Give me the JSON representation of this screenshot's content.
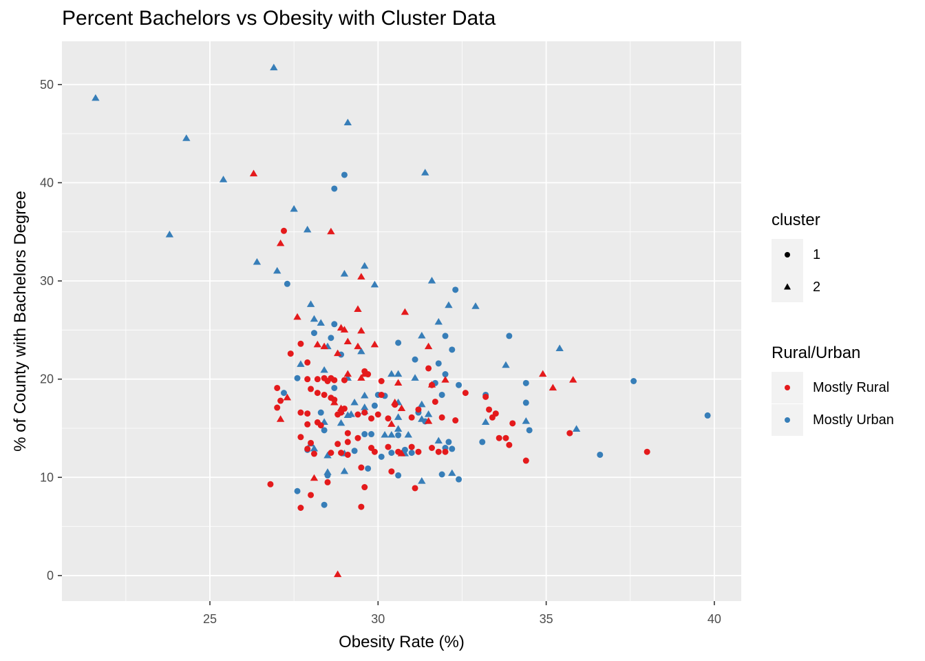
{
  "chart_data": {
    "type": "scatter",
    "title": "Percent Bachelors vs Obesity with Cluster Data",
    "xlabel": "Obesity Rate (%)",
    "ylabel": "% of County with Bachelors Degree",
    "xlim": [
      20.6,
      40.8
    ],
    "ylim": [
      -2.6,
      54.4
    ],
    "x_ticks": [
      25,
      30,
      35,
      40
    ],
    "y_ticks": [
      0,
      10,
      20,
      30,
      40,
      50
    ],
    "x_tick_labels": [
      "25",
      "30",
      "35",
      "40"
    ],
    "y_tick_labels": [
      "0",
      "10",
      "20",
      "30",
      "40",
      "50"
    ],
    "grid": true,
    "panel_background": "#ebebeb",
    "legend_position": "right",
    "legends": [
      {
        "title": "cluster",
        "entries": [
          {
            "label": "1",
            "shape": "circle"
          },
          {
            "label": "2",
            "shape": "triangle"
          }
        ]
      },
      {
        "title": "Rural/Urban",
        "entries": [
          {
            "label": "Mostly Rural",
            "color": "#e41a1c"
          },
          {
            "label": "Mostly Urban",
            "color": "#377eb8"
          }
        ]
      }
    ],
    "colors": {
      "Mostly Rural": "#e41a1c",
      "Mostly Urban": "#377eb8"
    },
    "series": [
      {
        "name": "Mostly Urban",
        "cluster": "2",
        "points": [
          [
            21.6,
            48.6
          ],
          [
            26.9,
            51.7
          ],
          [
            24.3,
            44.5
          ],
          [
            25.4,
            40.3
          ],
          [
            29.1,
            46.1
          ],
          [
            23.8,
            34.7
          ],
          [
            31.4,
            41.0
          ],
          [
            27.5,
            37.3
          ],
          [
            27.9,
            35.2
          ],
          [
            26.4,
            31.9
          ],
          [
            27.0,
            31.0
          ],
          [
            29.6,
            31.5
          ],
          [
            29.0,
            30.7
          ],
          [
            31.6,
            30.0
          ],
          [
            29.9,
            29.6
          ],
          [
            32.1,
            27.5
          ],
          [
            32.9,
            27.4
          ],
          [
            28.0,
            27.6
          ],
          [
            28.1,
            26.1
          ],
          [
            28.3,
            25.7
          ],
          [
            31.8,
            25.8
          ],
          [
            31.3,
            24.4
          ],
          [
            28.5,
            23.3
          ],
          [
            29.5,
            22.8
          ],
          [
            27.7,
            21.5
          ],
          [
            28.4,
            20.9
          ],
          [
            33.8,
            21.4
          ],
          [
            35.4,
            23.1
          ],
          [
            29.1,
            20.1
          ],
          [
            30.4,
            20.5
          ],
          [
            30.6,
            20.5
          ],
          [
            31.1,
            20.1
          ],
          [
            29.6,
            18.3
          ],
          [
            29.3,
            17.6
          ],
          [
            29.6,
            17.1
          ],
          [
            30.6,
            17.6
          ],
          [
            31.3,
            17.4
          ],
          [
            31.5,
            16.4
          ],
          [
            29.6,
            16.7
          ],
          [
            29.2,
            16.4
          ],
          [
            28.9,
            16.7
          ],
          [
            29.1,
            16.3
          ],
          [
            30.6,
            16.1
          ],
          [
            31.3,
            15.9
          ],
          [
            28.4,
            15.6
          ],
          [
            28.9,
            15.5
          ],
          [
            30.6,
            14.9
          ],
          [
            30.2,
            14.3
          ],
          [
            30.4,
            14.3
          ],
          [
            30.9,
            14.3
          ],
          [
            31.8,
            13.7
          ],
          [
            33.2,
            15.6
          ],
          [
            34.4,
            15.7
          ],
          [
            35.9,
            14.9
          ],
          [
            28.0,
            13.4
          ],
          [
            28.1,
            12.9
          ],
          [
            29.0,
            12.4
          ],
          [
            30.8,
            12.4
          ],
          [
            28.5,
            10.5
          ],
          [
            29.0,
            10.6
          ],
          [
            31.3,
            9.6
          ],
          [
            32.2,
            10.4
          ],
          [
            28.5,
            12.2
          ]
        ]
      },
      {
        "name": "Mostly Urban",
        "cluster": "1",
        "points": [
          [
            29.0,
            40.8
          ],
          [
            28.7,
            39.4
          ],
          [
            27.3,
            29.7
          ],
          [
            32.3,
            29.1
          ],
          [
            28.7,
            25.6
          ],
          [
            28.6,
            24.2
          ],
          [
            30.6,
            23.7
          ],
          [
            32.0,
            24.4
          ],
          [
            33.9,
            24.4
          ],
          [
            28.1,
            24.7
          ],
          [
            28.9,
            22.5
          ],
          [
            31.1,
            22.0
          ],
          [
            31.8,
            21.6
          ],
          [
            32.2,
            23.0
          ],
          [
            27.6,
            20.1
          ],
          [
            32.0,
            20.5
          ],
          [
            31.7,
            19.6
          ],
          [
            32.4,
            19.4
          ],
          [
            34.4,
            19.6
          ],
          [
            37.6,
            19.8
          ],
          [
            27.2,
            18.6
          ],
          [
            28.7,
            19.1
          ],
          [
            30.0,
            18.4
          ],
          [
            30.2,
            18.3
          ],
          [
            31.9,
            18.4
          ],
          [
            33.2,
            18.4
          ],
          [
            34.4,
            17.6
          ],
          [
            29.9,
            17.3
          ],
          [
            31.2,
            16.6
          ],
          [
            28.3,
            16.6
          ],
          [
            39.8,
            16.3
          ],
          [
            29.6,
            14.4
          ],
          [
            29.8,
            14.4
          ],
          [
            30.6,
            14.3
          ],
          [
            31.4,
            15.7
          ],
          [
            32.1,
            13.6
          ],
          [
            34.5,
            14.8
          ],
          [
            28.4,
            14.8
          ],
          [
            30.4,
            12.5
          ],
          [
            30.8,
            12.8
          ],
          [
            31.0,
            12.5
          ],
          [
            33.1,
            13.6
          ],
          [
            29.3,
            12.7
          ],
          [
            30.1,
            12.1
          ],
          [
            32.2,
            12.9
          ],
          [
            29.7,
            10.9
          ],
          [
            30.6,
            10.2
          ],
          [
            31.9,
            10.3
          ],
          [
            32.4,
            9.8
          ],
          [
            28.5,
            10.2
          ],
          [
            27.6,
            8.6
          ],
          [
            28.4,
            7.2
          ],
          [
            36.6,
            12.3
          ],
          [
            27.9,
            12.8
          ],
          [
            32.0,
            13.0
          ]
        ]
      },
      {
        "name": "Mostly Rural",
        "cluster": "2",
        "points": [
          [
            26.3,
            40.9
          ],
          [
            28.6,
            35.0
          ],
          [
            27.1,
            33.8
          ],
          [
            29.5,
            30.4
          ],
          [
            29.4,
            27.1
          ],
          [
            30.8,
            26.8
          ],
          [
            27.6,
            26.3
          ],
          [
            29.0,
            25.0
          ],
          [
            28.9,
            25.2
          ],
          [
            29.5,
            24.9
          ],
          [
            28.2,
            23.5
          ],
          [
            28.4,
            23.3
          ],
          [
            29.1,
            23.8
          ],
          [
            29.9,
            23.5
          ],
          [
            29.4,
            23.3
          ],
          [
            31.5,
            23.3
          ],
          [
            28.8,
            22.6
          ],
          [
            29.1,
            20.5
          ],
          [
            29.6,
            20.5
          ],
          [
            34.9,
            20.5
          ],
          [
            35.8,
            19.9
          ],
          [
            35.2,
            19.1
          ],
          [
            30.6,
            19.6
          ],
          [
            31.6,
            19.4
          ],
          [
            32.0,
            19.9
          ],
          [
            27.3,
            18.1
          ],
          [
            29.5,
            20.1
          ],
          [
            27.1,
            15.9
          ],
          [
            30.5,
            17.6
          ],
          [
            30.7,
            17.0
          ],
          [
            31.5,
            15.7
          ],
          [
            28.7,
            17.6
          ],
          [
            28.9,
            17.0
          ],
          [
            30.4,
            15.4
          ],
          [
            30.7,
            12.4
          ],
          [
            28.1,
            9.9
          ],
          [
            28.8,
            0.1
          ]
        ]
      },
      {
        "name": "Mostly Rural",
        "cluster": "1",
        "points": [
          [
            27.2,
            35.1
          ],
          [
            27.4,
            22.6
          ],
          [
            27.7,
            23.6
          ],
          [
            27.9,
            21.7
          ],
          [
            28.2,
            20.0
          ],
          [
            28.4,
            20.1
          ],
          [
            28.6,
            20.1
          ],
          [
            28.7,
            19.9
          ],
          [
            28.5,
            19.8
          ],
          [
            27.9,
            20.0
          ],
          [
            28.0,
            19.0
          ],
          [
            28.2,
            18.6
          ],
          [
            28.4,
            18.4
          ],
          [
            28.6,
            18.1
          ],
          [
            28.7,
            17.9
          ],
          [
            27.0,
            19.1
          ],
          [
            27.1,
            17.8
          ],
          [
            27.0,
            17.1
          ],
          [
            27.7,
            16.6
          ],
          [
            27.9,
            16.5
          ],
          [
            28.2,
            15.6
          ],
          [
            28.3,
            15.3
          ],
          [
            27.9,
            15.4
          ],
          [
            28.9,
            16.6
          ],
          [
            29.0,
            17.0
          ],
          [
            29.4,
            16.4
          ],
          [
            29.6,
            16.6
          ],
          [
            29.8,
            16.0
          ],
          [
            30.0,
            16.4
          ],
          [
            30.1,
            19.8
          ],
          [
            29.7,
            20.5
          ],
          [
            29.6,
            20.8
          ],
          [
            29.0,
            19.9
          ],
          [
            30.3,
            16.0
          ],
          [
            30.5,
            17.4
          ],
          [
            31.0,
            16.1
          ],
          [
            31.2,
            16.9
          ],
          [
            31.5,
            21.1
          ],
          [
            31.6,
            19.4
          ],
          [
            31.7,
            17.7
          ],
          [
            31.9,
            16.1
          ],
          [
            32.3,
            15.8
          ],
          [
            32.6,
            18.6
          ],
          [
            33.2,
            18.2
          ],
          [
            33.3,
            16.9
          ],
          [
            33.4,
            16.1
          ],
          [
            33.5,
            16.5
          ],
          [
            34.0,
            15.5
          ],
          [
            33.6,
            14.0
          ],
          [
            33.8,
            14.0
          ],
          [
            33.9,
            13.3
          ],
          [
            34.4,
            11.7
          ],
          [
            35.7,
            14.5
          ],
          [
            38.0,
            12.6
          ],
          [
            27.7,
            14.1
          ],
          [
            28.0,
            13.5
          ],
          [
            27.9,
            12.9
          ],
          [
            28.1,
            12.4
          ],
          [
            28.8,
            13.4
          ],
          [
            29.1,
            13.6
          ],
          [
            29.1,
            14.5
          ],
          [
            29.4,
            14.0
          ],
          [
            29.8,
            13.0
          ],
          [
            29.9,
            12.6
          ],
          [
            30.3,
            13.1
          ],
          [
            30.6,
            12.6
          ],
          [
            31.0,
            13.1
          ],
          [
            31.2,
            12.6
          ],
          [
            31.6,
            13.0
          ],
          [
            31.8,
            12.6
          ],
          [
            32.0,
            12.6
          ],
          [
            28.6,
            12.5
          ],
          [
            28.9,
            12.5
          ],
          [
            29.1,
            12.3
          ],
          [
            29.5,
            11.0
          ],
          [
            30.4,
            10.6
          ],
          [
            31.1,
            8.9
          ],
          [
            28.5,
            9.5
          ],
          [
            29.6,
            9.0
          ],
          [
            26.8,
            9.3
          ],
          [
            28.0,
            8.2
          ],
          [
            27.7,
            6.9
          ],
          [
            29.5,
            7.0
          ],
          [
            28.8,
            16.4
          ],
          [
            30.1,
            18.4
          ]
        ]
      }
    ]
  }
}
